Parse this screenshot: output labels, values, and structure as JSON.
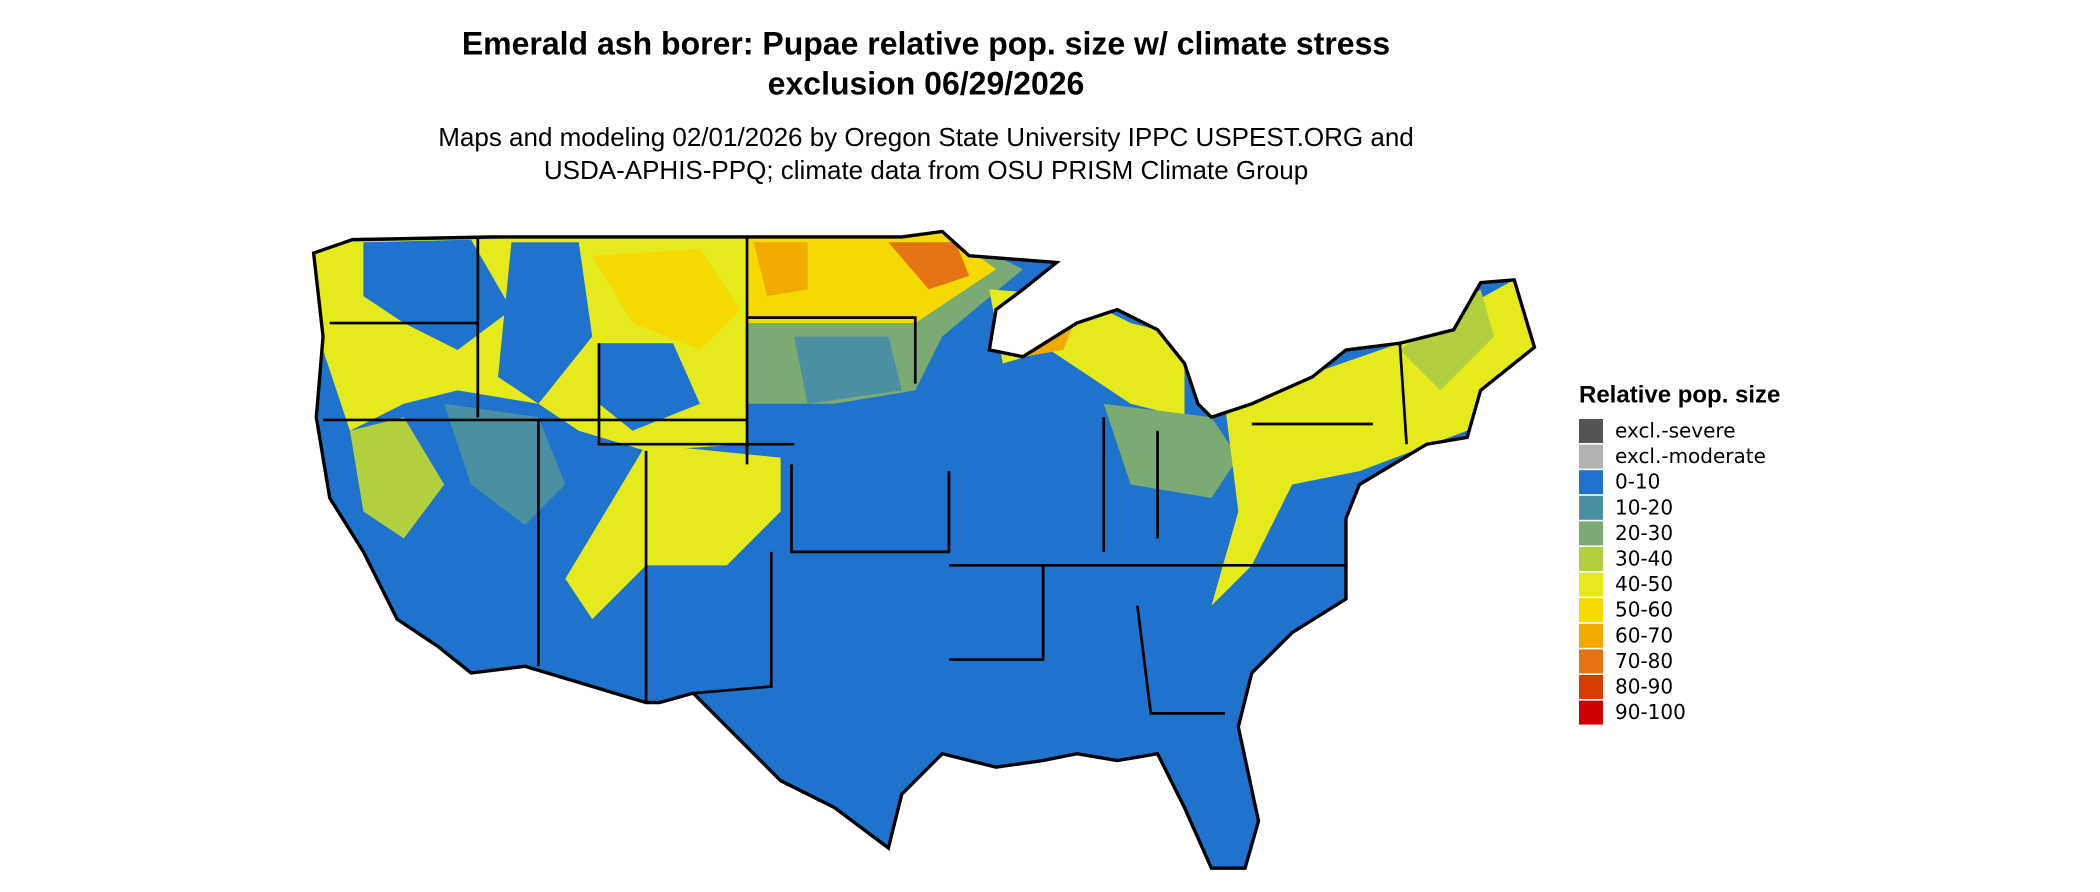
{
  "title": [
    "Emerald ash borer: Pupae relative pop. size w/ climate stress",
    "exclusion 06/29/2026"
  ],
  "subtitle": [
    "Maps and modeling 02/01/2026 by Oregon State University IPPC USPEST.ORG and",
    "USDA-APHIS-PPQ; climate data from OSU PRISM Climate Group"
  ],
  "legend": {
    "title": "Relative pop. size",
    "items": [
      {
        "label": "excl.-severe",
        "color": "#555555"
      },
      {
        "label": "excl.-moderate",
        "color": "#b2b2b2"
      },
      {
        "label": "0-10",
        "color": "#1f73cc"
      },
      {
        "label": "10-20",
        "color": "#4b90a2"
      },
      {
        "label": "20-30",
        "color": "#7aab72"
      },
      {
        "label": "30-40",
        "color": "#b2cf3e"
      },
      {
        "label": "40-50",
        "color": "#e4ea1c"
      },
      {
        "label": "50-60",
        "color": "#f6d900"
      },
      {
        "label": "60-70",
        "color": "#f0aa00"
      },
      {
        "label": "70-80",
        "color": "#e67312"
      },
      {
        "label": "80-90",
        "color": "#d83c00"
      },
      {
        "label": "90-100",
        "color": "#d00000"
      }
    ]
  }
}
